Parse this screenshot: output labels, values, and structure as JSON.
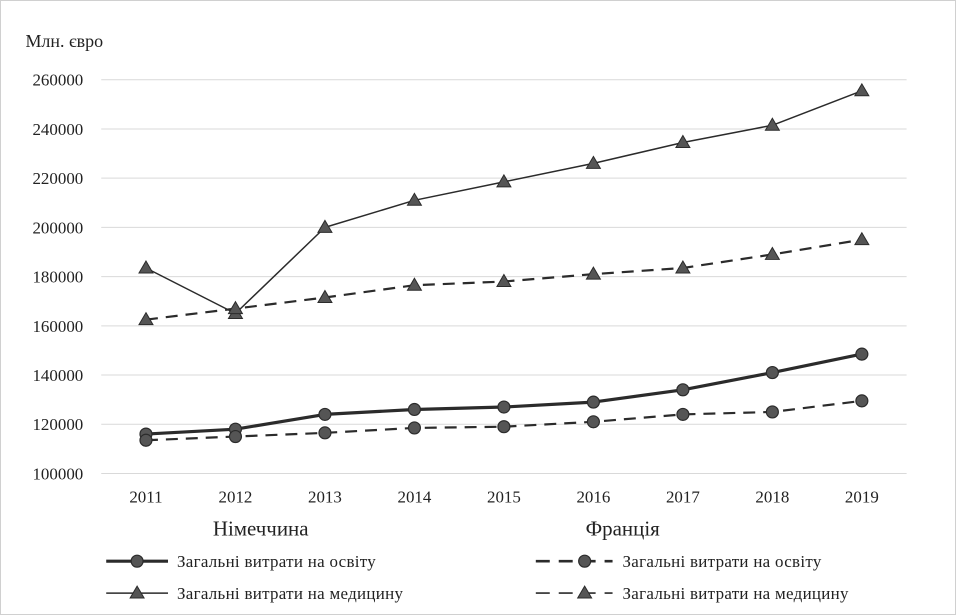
{
  "chart_data": {
    "type": "line",
    "ylabel": "Млн. євро",
    "categories": [
      "2011",
      "2012",
      "2013",
      "2014",
      "2015",
      "2016",
      "2017",
      "2018",
      "2019"
    ],
    "ylim": [
      100000,
      260000
    ],
    "yticks": [
      "100000",
      "120000",
      "140000",
      "160000",
      "180000",
      "200000",
      "220000",
      "240000",
      "260000"
    ],
    "grid": true,
    "group_labels": [
      "Німеччина",
      "Франція"
    ],
    "series": [
      {
        "name": "Загальні витрати на освіту",
        "group": "Німеччина",
        "style": "solid-thick",
        "marker": "circle",
        "values": [
          116000,
          118000,
          124000,
          126000,
          127000,
          129000,
          134000,
          141000,
          148500
        ]
      },
      {
        "name": "Загальні витрати на медицину",
        "group": "Німеччина",
        "style": "solid-thin",
        "marker": "triangle",
        "values": [
          183500,
          165000,
          200000,
          211000,
          218500,
          226000,
          234500,
          241500,
          255500
        ]
      },
      {
        "name": "Загальні витрати на освіту",
        "group": "Франція",
        "style": "dashed",
        "marker": "circle",
        "values": [
          113500,
          115000,
          116500,
          118500,
          119000,
          121000,
          124000,
          125000,
          129500
        ]
      },
      {
        "name": "Загальні витрати на медицину",
        "group": "Франція",
        "style": "dashed",
        "marker": "triangle",
        "values": [
          162500,
          167000,
          171500,
          176500,
          178000,
          181000,
          183500,
          189000,
          195000
        ]
      }
    ],
    "colors": {
      "line": "#2b2b2b",
      "marker": "#555555",
      "grid": "#d9d9d9"
    }
  }
}
